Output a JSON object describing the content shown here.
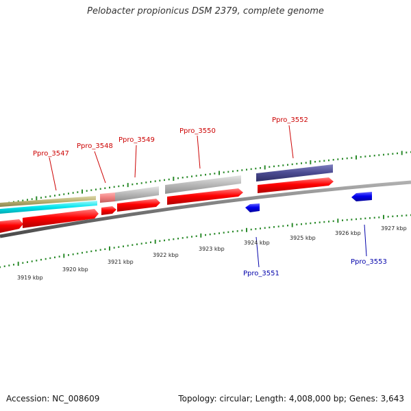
{
  "title": "Pelobacter propionicus DSM 2379, complete genome",
  "accession": "Accession: NC_008609",
  "summary": "Topology: circular; Length: 4,008,000 bp; Genes: 3,643",
  "colors": {
    "forward_gene": "#ff0000",
    "reverse_gene": "#0000ee",
    "gene_label_top": "#cc0000",
    "gene_label_bottom": "#0000aa",
    "tick": "#2a8a2a",
    "backbone": "#777777",
    "cog_gray": "#b8b8b8",
    "cog_purple": "#4a4a90",
    "cog_pink": "#f08080",
    "cog_olive": "#b8b070",
    "cog_cyan": "#00e5ee"
  },
  "scale_labels": [
    "3919 kbp",
    "3920 kbp",
    "3921 kbp",
    "3922 kbp",
    "3923 kbp",
    "3924 kbp",
    "3925 kbp",
    "3926 kbp",
    "3927 kbp"
  ],
  "gene_labels_top": [
    "Ppro_3547",
    "Ppro_3548",
    "Ppro_3549",
    "Ppro_3550",
    "Ppro_3552"
  ],
  "gene_labels_bottom": [
    "Ppro_3551",
    "Ppro_3553"
  ]
}
